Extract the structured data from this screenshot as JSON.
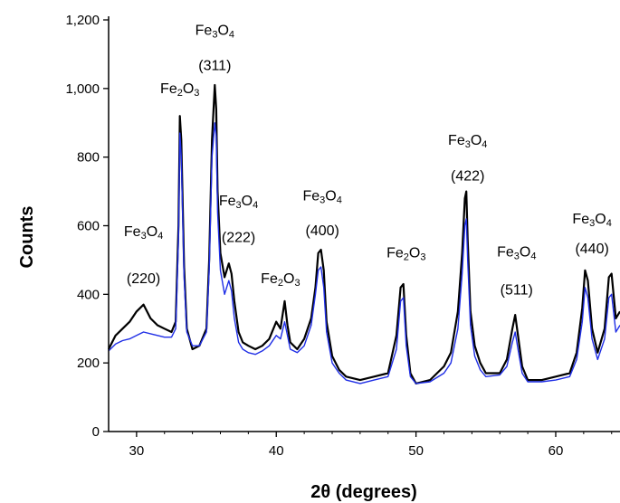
{
  "chart_data": {
    "type": "line",
    "xlabel": "2θ (degrees)",
    "ylabel": "Counts",
    "xlim": [
      28,
      64.6
    ],
    "ylim": [
      0,
      1200
    ],
    "x_ticks": [
      30,
      40,
      50,
      60
    ],
    "x_tick_labels": [
      "30",
      "40",
      "50",
      "60"
    ],
    "y_ticks": [
      0,
      200,
      400,
      600,
      800,
      1000,
      1200
    ],
    "y_tick_labels": [
      "0",
      "200",
      "400",
      "600",
      "800",
      "1,000",
      "1,200"
    ],
    "grid": false,
    "series": [
      {
        "role": "raw",
        "color": "#000000",
        "x": [
          28.0,
          28.5,
          29.0,
          29.5,
          30.0,
          30.5,
          31.0,
          31.5,
          32.0,
          32.5,
          32.8,
          33.0,
          33.1,
          33.2,
          33.4,
          33.6,
          34.0,
          34.5,
          35.0,
          35.2,
          35.4,
          35.6,
          35.7,
          35.8,
          36.0,
          36.3,
          36.6,
          36.8,
          37.0,
          37.3,
          37.6,
          38.0,
          38.5,
          39.0,
          39.5,
          40.0,
          40.3,
          40.6,
          40.8,
          41.0,
          41.5,
          42.0,
          42.5,
          42.8,
          43.0,
          43.2,
          43.4,
          43.6,
          44.0,
          44.5,
          45.0,
          46.0,
          47.0,
          48.0,
          48.6,
          48.9,
          49.1,
          49.3,
          49.6,
          50.0,
          51.0,
          52.0,
          52.5,
          53.0,
          53.3,
          53.5,
          53.6,
          53.7,
          53.9,
          54.2,
          54.6,
          55.0,
          56.0,
          56.5,
          56.9,
          57.1,
          57.3,
          57.6,
          58.0,
          59.0,
          60.0,
          61.0,
          61.5,
          61.9,
          62.1,
          62.3,
          62.6,
          63.0,
          63.5,
          63.8,
          64.0,
          64.3,
          64.6
        ],
        "y": [
          240,
          280,
          300,
          320,
          350,
          370,
          330,
          310,
          300,
          290,
          320,
          600,
          920,
          850,
          480,
          300,
          240,
          250,
          300,
          500,
          850,
          1010,
          940,
          700,
          520,
          450,
          490,
          460,
          380,
          290,
          260,
          250,
          240,
          250,
          270,
          320,
          300,
          380,
          310,
          260,
          240,
          270,
          330,
          420,
          520,
          530,
          470,
          320,
          220,
          180,
          160,
          150,
          160,
          170,
          280,
          420,
          430,
          280,
          170,
          140,
          150,
          190,
          230,
          350,
          520,
          680,
          700,
          560,
          350,
          250,
          200,
          170,
          170,
          210,
          300,
          340,
          280,
          190,
          150,
          150,
          160,
          170,
          230,
          360,
          470,
          440,
          300,
          230,
          300,
          450,
          460,
          330,
          350
        ]
      },
      {
        "role": "smoothed",
        "color": "#1f2ee6",
        "x": [
          28.0,
          28.5,
          29.0,
          29.5,
          30.0,
          30.5,
          31.0,
          31.5,
          32.0,
          32.5,
          32.8,
          33.0,
          33.1,
          33.2,
          33.4,
          33.6,
          34.0,
          34.5,
          35.0,
          35.2,
          35.4,
          35.6,
          35.7,
          35.8,
          36.0,
          36.3,
          36.6,
          36.8,
          37.0,
          37.3,
          37.6,
          38.0,
          38.5,
          39.0,
          39.5,
          40.0,
          40.3,
          40.6,
          40.8,
          41.0,
          41.5,
          42.0,
          42.5,
          42.8,
          43.0,
          43.2,
          43.4,
          43.6,
          44.0,
          44.5,
          45.0,
          46.0,
          47.0,
          48.0,
          48.6,
          48.9,
          49.1,
          49.3,
          49.6,
          50.0,
          51.0,
          52.0,
          52.5,
          53.0,
          53.3,
          53.5,
          53.6,
          53.7,
          53.9,
          54.2,
          54.6,
          55.0,
          56.0,
          56.5,
          56.9,
          57.1,
          57.3,
          57.6,
          58.0,
          59.0,
          60.0,
          61.0,
          61.5,
          61.9,
          62.1,
          62.3,
          62.6,
          63.0,
          63.5,
          63.8,
          64.0,
          64.3,
          64.6
        ],
        "y": [
          235,
          255,
          265,
          270,
          280,
          290,
          285,
          280,
          275,
          275,
          300,
          560,
          870,
          800,
          450,
          290,
          250,
          250,
          290,
          470,
          800,
          900,
          860,
          640,
          470,
          400,
          440,
          410,
          330,
          260,
          240,
          230,
          225,
          235,
          250,
          280,
          270,
          320,
          280,
          240,
          230,
          250,
          310,
          400,
          470,
          480,
          420,
          290,
          200,
          170,
          150,
          140,
          150,
          160,
          240,
          380,
          390,
          250,
          160,
          140,
          145,
          170,
          200,
          300,
          460,
          600,
          620,
          500,
          310,
          220,
          180,
          160,
          165,
          190,
          260,
          290,
          240,
          170,
          145,
          145,
          150,
          160,
          210,
          320,
          420,
          390,
          270,
          210,
          270,
          390,
          400,
          290,
          310
        ]
      }
    ],
    "annotations": [
      {
        "compound": "Fe₃O₄",
        "hkl": "(220)",
        "x": 30.5,
        "y_top": 570,
        "y_hkl": 432
      },
      {
        "compound": "Fe₂O₃",
        "hkl": "",
        "x": 33.1,
        "y_top": 986,
        "y_hkl": 0
      },
      {
        "compound": "Fe₃O₄",
        "hkl": "(311)",
        "x": 35.6,
        "y_top": 1156,
        "y_hkl": 1054
      },
      {
        "compound": "Fe₃O₄",
        "hkl": "(222)",
        "x": 37.3,
        "y_top": 660,
        "y_hkl": 552
      },
      {
        "compound": "Fe₂O₃",
        "hkl": "",
        "x": 40.3,
        "y_top": 432,
        "y_hkl": 0
      },
      {
        "compound": "Fe₃O₄",
        "hkl": "(400)",
        "x": 43.3,
        "y_top": 674,
        "y_hkl": 572
      },
      {
        "compound": "Fe₂O₃",
        "hkl": "",
        "x": 49.3,
        "y_top": 508,
        "y_hkl": 0
      },
      {
        "compound": "Fe₃O₄",
        "hkl": "(422)",
        "x": 53.7,
        "y_top": 836,
        "y_hkl": 732
      },
      {
        "compound": "Fe₃O₄",
        "hkl": "(511)",
        "x": 57.2,
        "y_top": 510,
        "y_hkl": 400
      },
      {
        "compound": "Fe₃O₄",
        "hkl": "(440)",
        "x": 62.6,
        "y_top": 606,
        "y_hkl": 520
      }
    ]
  }
}
